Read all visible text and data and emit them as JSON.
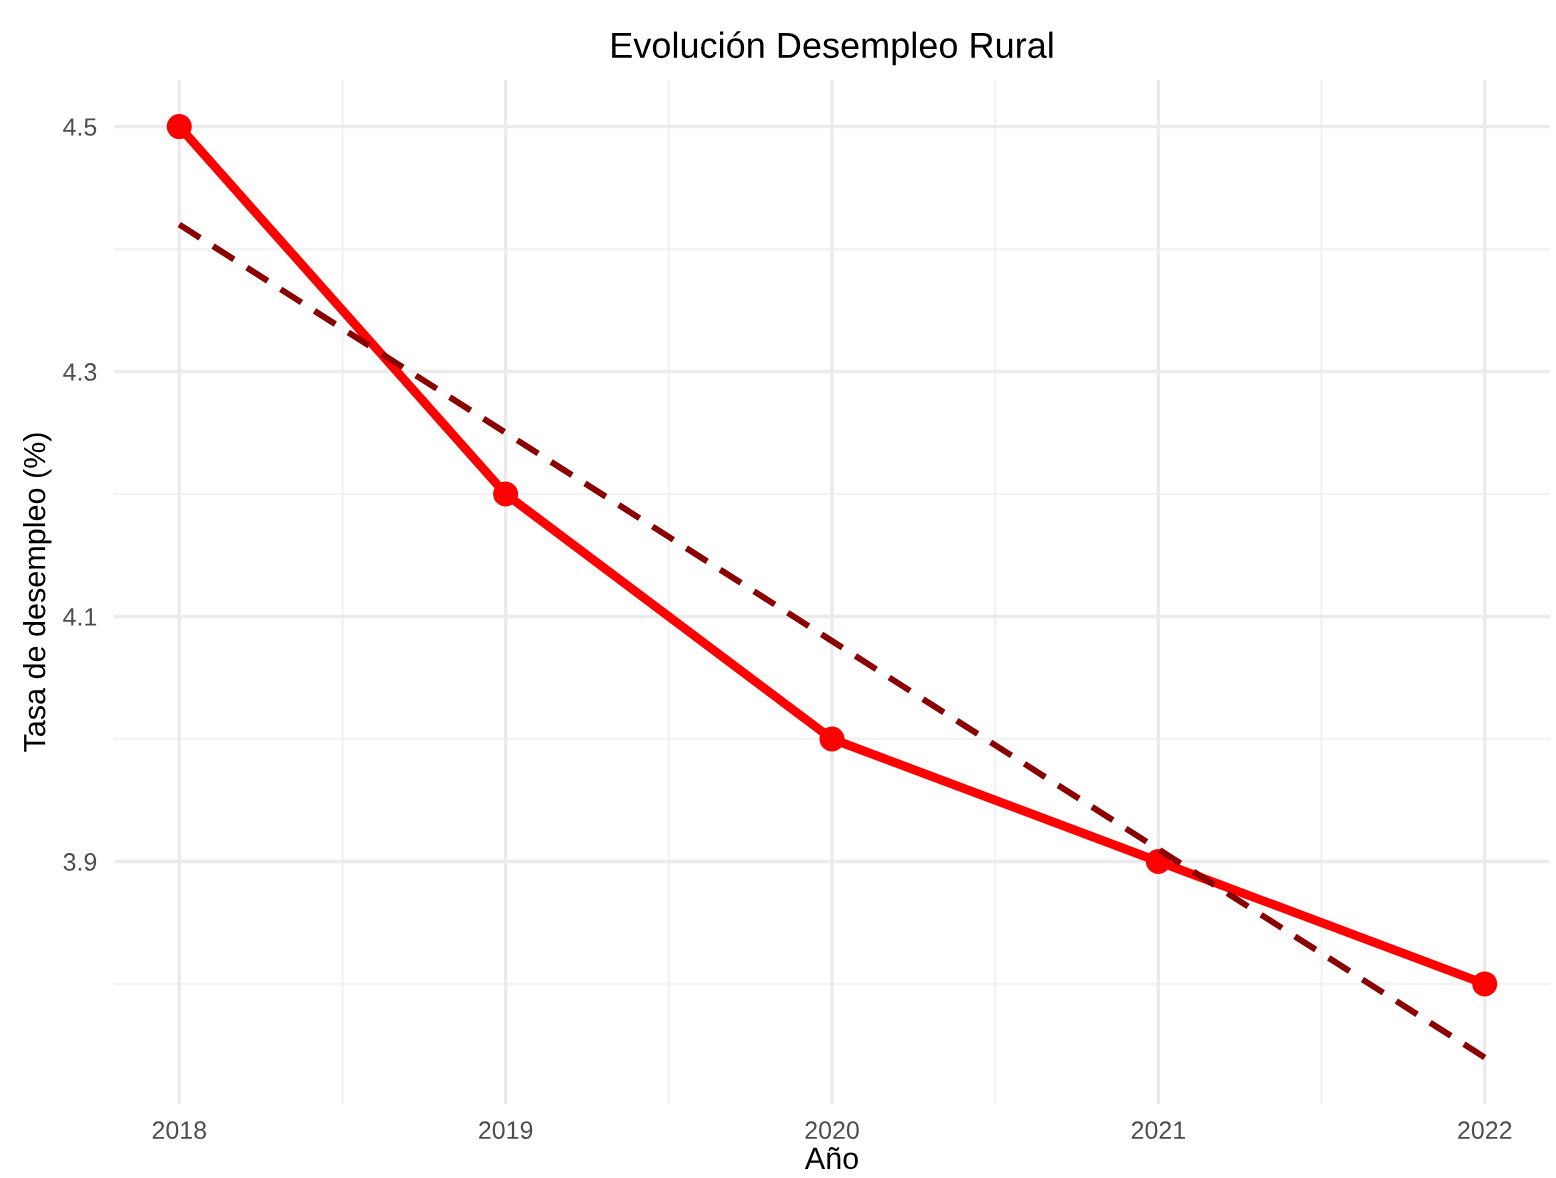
{
  "chart_data": {
    "type": "line",
    "title": "Evolución Desempleo Rural",
    "xlabel": "Año",
    "ylabel": "Tasa de desempleo (%)",
    "x": [
      2018,
      2019,
      2020,
      2021,
      2022
    ],
    "series": [
      {
        "color": "#ff0000",
        "values": [
          4.5,
          4.2,
          4.0,
          3.9,
          3.8
        ],
        "marker": "circle",
        "line_style": "solid"
      },
      {
        "type": "line",
        "color": "#8b0000",
        "x": [
          2018,
          2022
        ],
        "values": [
          4.42,
          3.74
        ],
        "marker": "none",
        "line_style": "dashed"
      }
    ],
    "xlim": [
      2017.8,
      2022.2
    ],
    "xticks": [
      2018,
      2019,
      2020,
      2021,
      2022
    ],
    "ylim": [
      3.702,
      4.538
    ],
    "yticks": [
      3.9,
      4.1,
      4.3,
      4.5
    ],
    "grid": true
  }
}
